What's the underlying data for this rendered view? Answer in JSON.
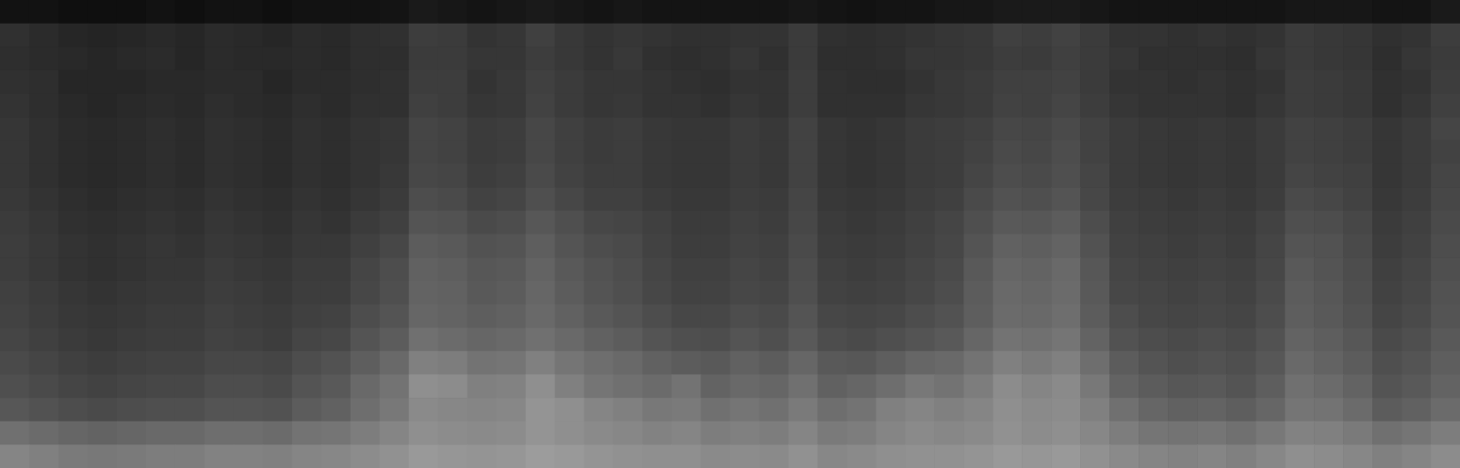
{
  "chart_data": {
    "type": "heatmap",
    "tick_labels": false,
    "zlim": [
      0,
      100
    ],
    "cells": [
      [
        7,
        7,
        6,
        6,
        6,
        7,
        6,
        7,
        7,
        6,
        7,
        7,
        7,
        8,
        10,
        9,
        8,
        9,
        10,
        9,
        8,
        9,
        8,
        8,
        8,
        8,
        8,
        9,
        8,
        7,
        8,
        8,
        9,
        9,
        10,
        10,
        10,
        9,
        8,
        8,
        8,
        8,
        8,
        8,
        9,
        9,
        9,
        8,
        8,
        10
      ],
      [
        19,
        17,
        15,
        14,
        15,
        16,
        15,
        17,
        16,
        15,
        17,
        16,
        18,
        19,
        24,
        23,
        20,
        21,
        25,
        22,
        20,
        21,
        20,
        19,
        19,
        20,
        20,
        23,
        19,
        18,
        19,
        20,
        21,
        22,
        25,
        24,
        26,
        23,
        20,
        20,
        19,
        20,
        19,
        20,
        23,
        22,
        21,
        19,
        20,
        24
      ],
      [
        18,
        17,
        16,
        15,
        16,
        17,
        15,
        17,
        16,
        16,
        17,
        16,
        18,
        18,
        23,
        23,
        21,
        21,
        24,
        22,
        20,
        22,
        19,
        18,
        19,
        21,
        19,
        23,
        18,
        18,
        19,
        21,
        21,
        22,
        24,
        23,
        25,
        23,
        21,
        19,
        19,
        19,
        18,
        21,
        23,
        22,
        21,
        18,
        21,
        23
      ],
      [
        19,
        18,
        15,
        15,
        15,
        16,
        16,
        17,
        17,
        15,
        17,
        17,
        18,
        19,
        24,
        24,
        20,
        22,
        25,
        23,
        21,
        21,
        20,
        19,
        18,
        20,
        20,
        24,
        19,
        18,
        18,
        20,
        22,
        23,
        25,
        25,
        26,
        23,
        20,
        20,
        19,
        20,
        19,
        20,
        24,
        23,
        22,
        19,
        20,
        24
      ],
      [
        20,
        18,
        16,
        15,
        16,
        17,
        16,
        18,
        17,
        16,
        18,
        17,
        19,
        19,
        25,
        24,
        21,
        22,
        26,
        23,
        21,
        22,
        20,
        20,
        19,
        21,
        20,
        24,
        19,
        19,
        19,
        21,
        22,
        23,
        26,
        25,
        27,
        24,
        21,
        20,
        20,
        20,
        19,
        21,
        24,
        23,
        22,
        19,
        21,
        25
      ],
      [
        21,
        19,
        17,
        16,
        17,
        18,
        17,
        19,
        18,
        17,
        19,
        18,
        20,
        21,
        27,
        26,
        23,
        24,
        28,
        25,
        23,
        24,
        22,
        21,
        21,
        23,
        22,
        26,
        21,
        20,
        21,
        23,
        24,
        25,
        28,
        27,
        29,
        26,
        23,
        22,
        21,
        22,
        21,
        23,
        26,
        25,
        24,
        21,
        23,
        27
      ],
      [
        21,
        19,
        17,
        16,
        17,
        18,
        17,
        19,
        18,
        17,
        19,
        18,
        20,
        21,
        27,
        26,
        23,
        24,
        28,
        25,
        23,
        24,
        22,
        21,
        21,
        23,
        22,
        26,
        21,
        20,
        21,
        23,
        24,
        26,
        29,
        28,
        30,
        26,
        23,
        22,
        21,
        22,
        21,
        23,
        26,
        25,
        24,
        21,
        23,
        26
      ],
      [
        21,
        19,
        17,
        16,
        17,
        18,
        17,
        19,
        18,
        17,
        19,
        18,
        20,
        22,
        28,
        27,
        24,
        25,
        29,
        26,
        24,
        24,
        22,
        21,
        21,
        23,
        22,
        26,
        21,
        20,
        21,
        23,
        24,
        27,
        30,
        29,
        31,
        27,
        23,
        22,
        21,
        22,
        21,
        23,
        27,
        26,
        25,
        21,
        23,
        27
      ],
      [
        22,
        20,
        18,
        17,
        18,
        19,
        18,
        20,
        19,
        18,
        20,
        19,
        21,
        23,
        30,
        29,
        26,
        27,
        31,
        28,
        25,
        25,
        23,
        22,
        22,
        24,
        23,
        27,
        22,
        21,
        22,
        24,
        25,
        29,
        32,
        31,
        33,
        28,
        24,
        23,
        22,
        23,
        22,
        24,
        29,
        28,
        26,
        22,
        24,
        28
      ],
      [
        23,
        21,
        19,
        18,
        19,
        20,
        19,
        21,
        20,
        19,
        21,
        20,
        23,
        25,
        33,
        32,
        29,
        30,
        34,
        31,
        28,
        27,
        25,
        23,
        23,
        25,
        24,
        28,
        23,
        22,
        23,
        25,
        27,
        31,
        35,
        34,
        36,
        30,
        25,
        24,
        23,
        24,
        23,
        26,
        31,
        30,
        28,
        23,
        25,
        29
      ],
      [
        24,
        22,
        20,
        19,
        20,
        21,
        20,
        22,
        21,
        20,
        22,
        22,
        25,
        28,
        36,
        35,
        32,
        33,
        37,
        33,
        30,
        29,
        26,
        24,
        24,
        26,
        25,
        29,
        24,
        23,
        24,
        26,
        28,
        33,
        38,
        37,
        39,
        32,
        26,
        25,
        24,
        25,
        24,
        27,
        33,
        32,
        29,
        24,
        26,
        30
      ],
      [
        24,
        22,
        20,
        19,
        20,
        21,
        21,
        23,
        22,
        21,
        23,
        23,
        27,
        30,
        38,
        37,
        34,
        35,
        39,
        35,
        32,
        30,
        27,
        25,
        25,
        27,
        26,
        30,
        25,
        24,
        25,
        27,
        29,
        35,
        40,
        39,
        41,
        34,
        27,
        26,
        25,
        26,
        25,
        28,
        35,
        33,
        30,
        25,
        27,
        31
      ],
      [
        25,
        23,
        21,
        20,
        21,
        22,
        22,
        24,
        23,
        22,
        24,
        24,
        28,
        31,
        39,
        38,
        35,
        36,
        40,
        36,
        33,
        31,
        28,
        26,
        26,
        28,
        27,
        31,
        26,
        25,
        26,
        28,
        30,
        36,
        41,
        40,
        42,
        35,
        28,
        27,
        26,
        27,
        26,
        29,
        36,
        34,
        31,
        26,
        28,
        32
      ],
      [
        26,
        24,
        22,
        21,
        22,
        23,
        23,
        25,
        24,
        23,
        25,
        26,
        30,
        33,
        40,
        39,
        37,
        38,
        41,
        38,
        35,
        33,
        30,
        28,
        28,
        30,
        29,
        33,
        28,
        27,
        28,
        30,
        32,
        37,
        42,
        41,
        43,
        36,
        30,
        28,
        27,
        28,
        27,
        30,
        37,
        35,
        32,
        27,
        29,
        33
      ],
      [
        27,
        25,
        23,
        22,
        23,
        24,
        24,
        26,
        25,
        24,
        27,
        28,
        33,
        36,
        44,
        42,
        40,
        41,
        44,
        41,
        38,
        36,
        33,
        31,
        30,
        33,
        31,
        35,
        30,
        29,
        31,
        33,
        35,
        40,
        45,
        44,
        46,
        39,
        32,
        30,
        29,
        30,
        29,
        32,
        39,
        37,
        34,
        29,
        31,
        35
      ],
      [
        29,
        27,
        25,
        24,
        25,
        26,
        26,
        28,
        28,
        27,
        30,
        32,
        37,
        41,
        50,
        49,
        45,
        46,
        50,
        46,
        43,
        41,
        38,
        36,
        35,
        38,
        36,
        40,
        35,
        34,
        37,
        40,
        41,
        45,
        50,
        48,
        50,
        43,
        36,
        33,
        31,
        32,
        31,
        34,
        41,
        39,
        36,
        31,
        33,
        37
      ],
      [
        31,
        29,
        27,
        26,
        27,
        28,
        28,
        30,
        30,
        29,
        33,
        35,
        41,
        45,
        56,
        55,
        50,
        51,
        56,
        50,
        46,
        44,
        42,
        45,
        39,
        41,
        40,
        44,
        38,
        40,
        43,
        47,
        45,
        49,
        55,
        52,
        54,
        47,
        39,
        36,
        34,
        35,
        33,
        37,
        44,
        42,
        39,
        33,
        35,
        39
      ],
      [
        34,
        32,
        30,
        29,
        30,
        31,
        31,
        33,
        33,
        32,
        36,
        38,
        43,
        47,
        54,
        53,
        52,
        53,
        58,
        56,
        52,
        50,
        47,
        48,
        44,
        46,
        44,
        48,
        43,
        45,
        50,
        52,
        50,
        52,
        56,
        54,
        55,
        50,
        44,
        40,
        38,
        39,
        37,
        40,
        46,
        45,
        42,
        36,
        38,
        42
      ],
      [
        44,
        42,
        40,
        39,
        40,
        41,
        41,
        43,
        43,
        42,
        45,
        46,
        49,
        52,
        56,
        55,
        54,
        55,
        58,
        56,
        54,
        53,
        51,
        52,
        49,
        50,
        49,
        52,
        48,
        49,
        52,
        54,
        53,
        54,
        57,
        55,
        56,
        53,
        49,
        46,
        45,
        46,
        44,
        47,
        51,
        50,
        48,
        44,
        46,
        49
      ],
      [
        52,
        50,
        48,
        47,
        48,
        49,
        49,
        51,
        51,
        50,
        52,
        53,
        55,
        57,
        60,
        59,
        58,
        59,
        61,
        60,
        58,
        57,
        56,
        56,
        54,
        55,
        54,
        57,
        53,
        54,
        56,
        57,
        57,
        58,
        60,
        59,
        60,
        57,
        54,
        52,
        51,
        52,
        50,
        53,
        56,
        55,
        53,
        50,
        52,
        55
      ]
    ]
  }
}
